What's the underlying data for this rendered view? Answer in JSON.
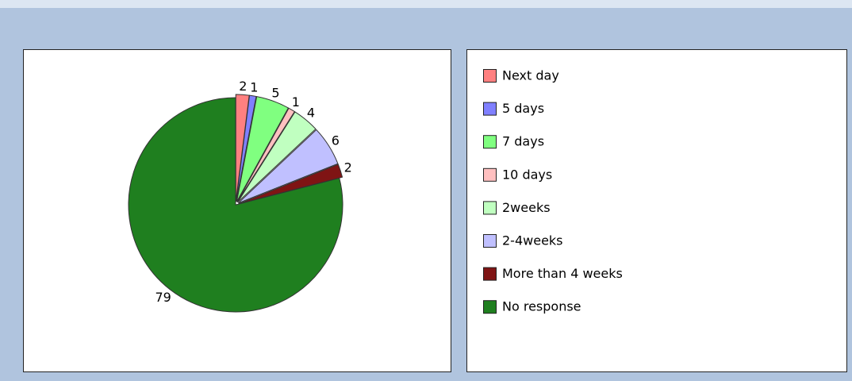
{
  "chart_data": {
    "type": "pie",
    "categories": [
      "Next day",
      "5 days",
      "7 days",
      "10 days",
      "2weeks",
      "2-4weeks",
      "More than 4 weeks",
      "No response"
    ],
    "values": [
      2,
      1,
      5,
      1,
      4,
      6,
      2,
      79
    ],
    "colors": [
      "#ff8080",
      "#8080ff",
      "#80ff80",
      "#ffc0c0",
      "#c0ffc0",
      "#c0c0ff",
      "#7f1414",
      "#1f7f1f"
    ],
    "legend": "right"
  }
}
